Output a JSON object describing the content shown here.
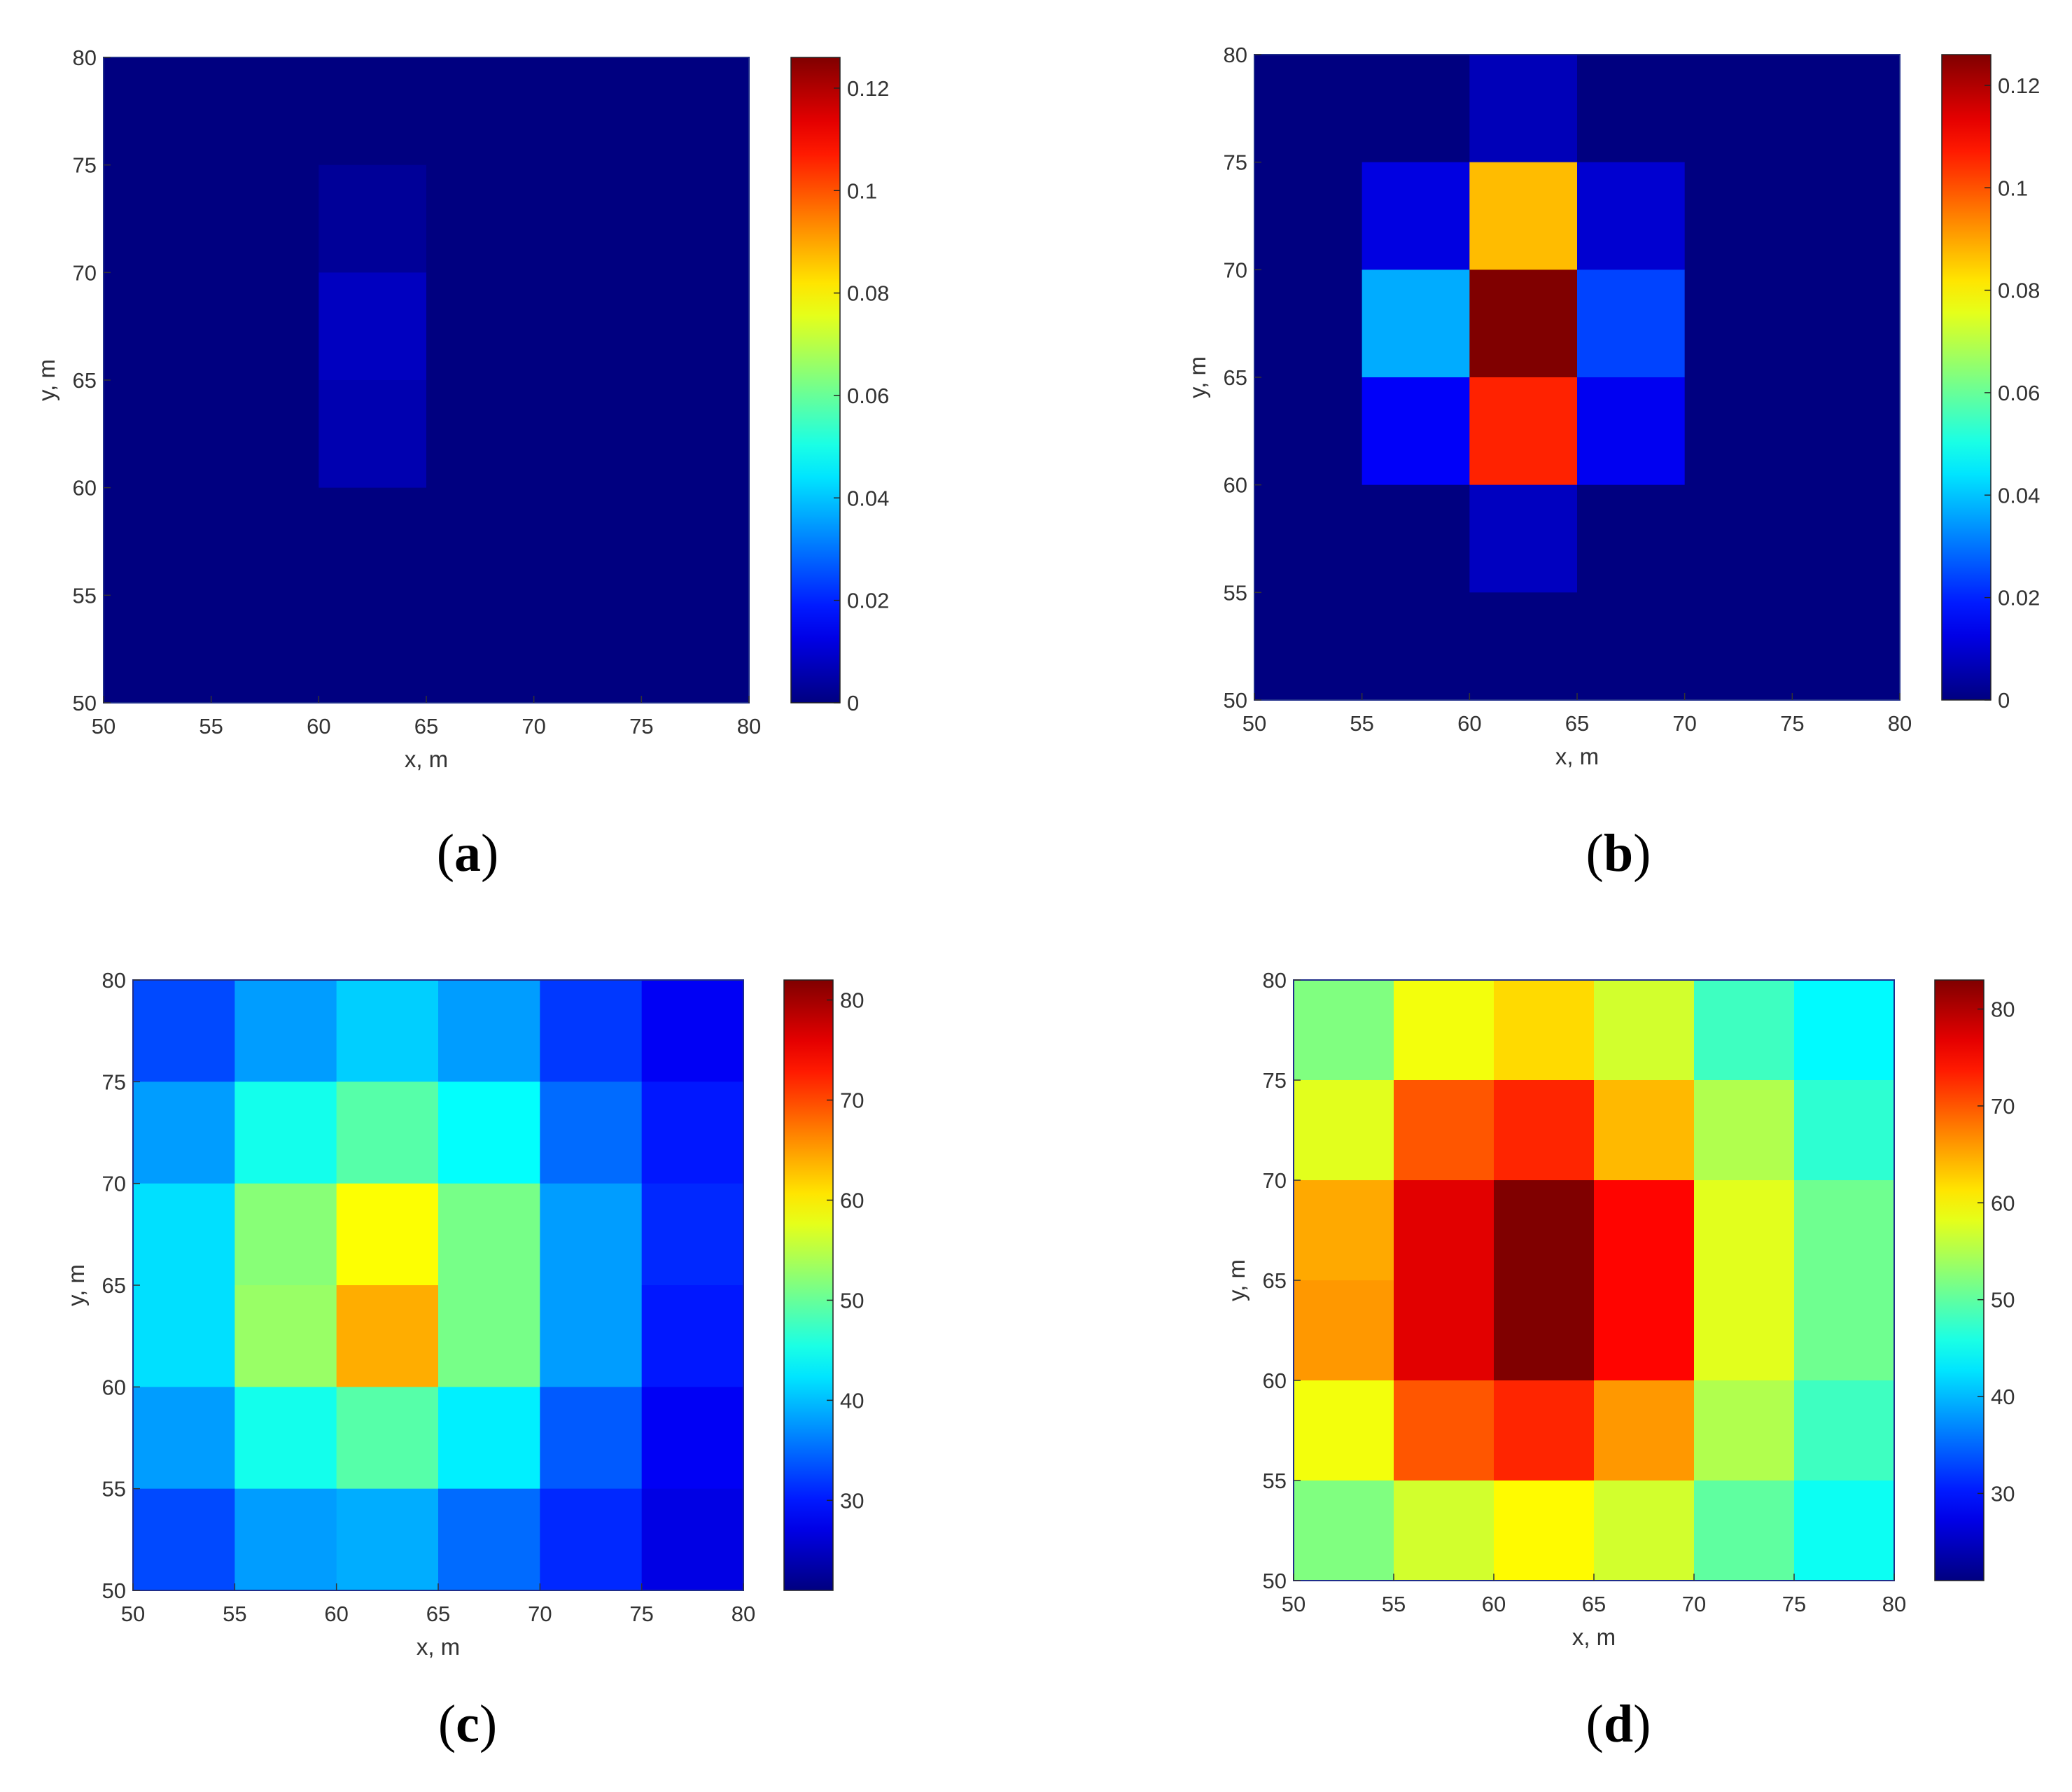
{
  "chart_data": [
    {
      "id": "a",
      "type": "heatmap",
      "panel_label": "a",
      "xlabel": "x, m",
      "ylabel": "y, m",
      "xlim": [
        50,
        80
      ],
      "ylim": [
        50,
        80
      ],
      "xticks": [
        50,
        55,
        60,
        65,
        70,
        75,
        80
      ],
      "yticks": [
        50,
        55,
        60,
        65,
        70,
        75,
        80
      ],
      "x_edges": [
        50,
        55,
        60,
        65,
        70,
        75,
        80
      ],
      "y_edges": [
        50,
        55,
        60,
        65,
        70,
        75,
        80
      ],
      "values": [
        [
          0,
          0,
          0,
          0,
          0,
          0
        ],
        [
          0,
          0,
          0.003,
          0,
          0,
          0
        ],
        [
          0,
          0,
          0.008,
          0,
          0,
          0
        ],
        [
          0,
          0,
          0.006,
          0,
          0,
          0
        ],
        [
          0,
          0,
          0,
          0,
          0,
          0
        ],
        [
          0,
          0,
          0,
          0,
          0,
          0
        ]
      ],
      "colorbar": {
        "min": 0,
        "max": 0.126,
        "ticks": [
          0,
          0.02,
          0.04,
          0.06,
          0.08,
          0.1,
          0.12
        ],
        "tick_labels": [
          "0",
          "0.02",
          "0.04",
          "0.06",
          "0.08",
          "0.1",
          "0.12"
        ]
      }
    },
    {
      "id": "b",
      "type": "heatmap",
      "panel_label": "b",
      "xlabel": "x, m",
      "ylabel": "y, m",
      "xlim": [
        50,
        80
      ],
      "ylim": [
        50,
        80
      ],
      "xticks": [
        50,
        55,
        60,
        65,
        70,
        75,
        80
      ],
      "yticks": [
        50,
        55,
        60,
        65,
        70,
        75,
        80
      ],
      "x_edges": [
        50,
        55,
        60,
        65,
        70,
        75,
        80
      ],
      "y_edges": [
        50,
        55,
        60,
        65,
        70,
        75,
        80
      ],
      "values": [
        [
          0,
          0,
          0.007,
          0,
          0,
          0
        ],
        [
          0,
          0.012,
          0.087,
          0.01,
          0,
          0
        ],
        [
          0,
          0.037,
          0.126,
          0.024,
          0,
          0
        ],
        [
          0,
          0.015,
          0.106,
          0.014,
          0,
          0
        ],
        [
          0,
          0,
          0.008,
          0,
          0,
          0
        ],
        [
          0,
          0,
          0,
          0,
          0,
          0
        ]
      ],
      "colorbar": {
        "min": 0,
        "max": 0.126,
        "ticks": [
          0,
          0.02,
          0.04,
          0.06,
          0.08,
          0.1,
          0.12
        ],
        "tick_labels": [
          "0",
          "0.02",
          "0.04",
          "0.06",
          "0.08",
          "0.1",
          "0.12"
        ]
      }
    },
    {
      "id": "c",
      "type": "heatmap",
      "panel_label": "c",
      "xlabel": "x, m",
      "ylabel": "y, m",
      "xlim": [
        50,
        80
      ],
      "ylim": [
        50,
        80
      ],
      "xticks": [
        50,
        55,
        60,
        65,
        70,
        75,
        80
      ],
      "yticks": [
        50,
        55,
        60,
        65,
        70,
        75,
        80
      ],
      "x_edges": [
        50,
        55,
        60,
        65,
        70,
        75,
        80
      ],
      "y_edges": [
        50,
        55,
        60,
        65,
        70,
        75,
        80
      ],
      "values": [
        [
          33,
          38,
          41,
          38,
          32,
          28
        ],
        [
          38,
          45,
          49,
          44,
          35,
          30
        ],
        [
          42,
          52,
          59,
          51,
          38,
          31
        ],
        [
          42,
          53,
          64,
          51,
          38,
          30
        ],
        [
          38,
          45,
          49,
          43,
          34,
          28
        ],
        [
          33,
          38,
          39,
          35,
          31,
          27
        ]
      ],
      "colorbar": {
        "min": 21,
        "max": 82,
        "ticks": [
          30,
          40,
          50,
          60,
          70,
          80
        ],
        "tick_labels": [
          "30",
          "40",
          "50",
          "60",
          "70",
          "80"
        ]
      }
    },
    {
      "id": "d",
      "type": "heatmap",
      "panel_label": "d",
      "xlabel": "x, m",
      "ylabel": "y, m",
      "xlim": [
        50,
        80
      ],
      "ylim": [
        50,
        80
      ],
      "xticks": [
        50,
        55,
        60,
        65,
        70,
        75,
        80
      ],
      "yticks": [
        50,
        55,
        60,
        65,
        70,
        75,
        80
      ],
      "x_edges": [
        50,
        55,
        60,
        65,
        70,
        75,
        80
      ],
      "y_edges": [
        50,
        55,
        60,
        65,
        70,
        75,
        80
      ],
      "values": [
        [
          52,
          59,
          62,
          57,
          48,
          44
        ],
        [
          58,
          70,
          73,
          64,
          55,
          47
        ],
        [
          65,
          77,
          83,
          75,
          58,
          51
        ],
        [
          66,
          77,
          83,
          75,
          58,
          51
        ],
        [
          59,
          70,
          73,
          66,
          55,
          48
        ],
        [
          52,
          57,
          60,
          57,
          50,
          45
        ]
      ],
      "colorbar": {
        "min": 21,
        "max": 83,
        "ticks": [
          30,
          40,
          50,
          60,
          70,
          80
        ],
        "tick_labels": [
          "30",
          "40",
          "50",
          "60",
          "70",
          "80"
        ]
      }
    }
  ]
}
